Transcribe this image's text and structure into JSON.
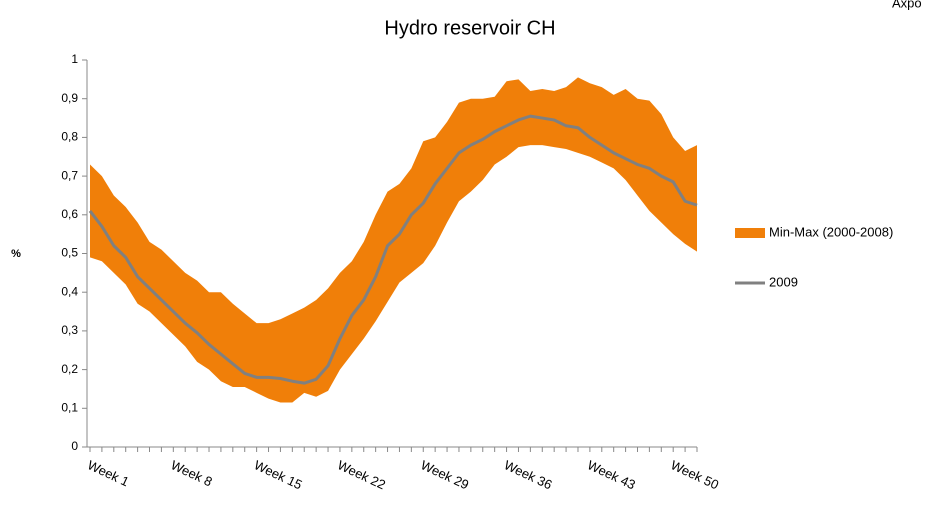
{
  "chart_data": {
    "type": "line",
    "title": "Hydro reservoir CH",
    "brand": "Axpo",
    "ylabel": "%",
    "categories": [
      "Week 1",
      null,
      null,
      null,
      null,
      null,
      null,
      "Week 8",
      null,
      null,
      null,
      null,
      null,
      null,
      "Week 15",
      null,
      null,
      null,
      null,
      null,
      null,
      "Week 22",
      null,
      null,
      null,
      null,
      null,
      null,
      "Week 29",
      null,
      null,
      null,
      null,
      null,
      null,
      "Week 36",
      null,
      null,
      null,
      null,
      null,
      null,
      "Week 43",
      null,
      null,
      null,
      null,
      null,
      null,
      "Week 50",
      null,
      null
    ],
    "ylim": [
      0,
      1
    ],
    "yticks": [
      0,
      {
        "value": 0.1,
        "label": "0,1"
      },
      {
        "value": 0.2,
        "label": "0,2"
      },
      {
        "value": 0.3,
        "label": "0,3"
      },
      {
        "value": 0.4,
        "label": "0,4"
      },
      {
        "value": 0.5,
        "label": "0,5"
      },
      {
        "value": 0.6,
        "label": "0,6"
      },
      {
        "value": 0.7,
        "label": "0,7"
      },
      {
        "value": 0.8,
        "label": "0,8"
      },
      {
        "value": 0.9,
        "label": "0,9"
      },
      1
    ],
    "grid": false,
    "legend": "right",
    "series": [
      {
        "name": "Min-Max (2000-2008)",
        "type": "area",
        "color": "#f07f09",
        "max": [
          0.73,
          0.7,
          0.65,
          0.62,
          0.58,
          0.53,
          0.51,
          0.48,
          0.45,
          0.43,
          0.4,
          0.4,
          0.37,
          0.345,
          0.32,
          0.32,
          0.33,
          0.345,
          0.36,
          0.38,
          0.41,
          0.45,
          0.48,
          0.53,
          0.6,
          0.66,
          0.68,
          0.72,
          0.79,
          0.8,
          0.84,
          0.89,
          0.9,
          0.9,
          0.905,
          0.945,
          0.95,
          0.92,
          0.925,
          0.92,
          0.93,
          0.955,
          0.94,
          0.93,
          0.91,
          0.925,
          0.9,
          0.895,
          0.86,
          0.8,
          0.765,
          0.78
        ],
        "min": [
          0.49,
          0.48,
          0.45,
          0.42,
          0.37,
          0.35,
          0.32,
          0.29,
          0.26,
          0.22,
          0.2,
          0.17,
          0.155,
          0.155,
          0.14,
          0.125,
          0.115,
          0.115,
          0.14,
          0.13,
          0.145,
          0.2,
          0.24,
          0.28,
          0.325,
          0.375,
          0.425,
          0.45,
          0.475,
          0.52,
          0.58,
          0.635,
          0.66,
          0.69,
          0.73,
          0.75,
          0.775,
          0.78,
          0.78,
          0.775,
          0.77,
          0.76,
          0.75,
          0.735,
          0.72,
          0.69,
          0.65,
          0.61,
          0.58,
          0.55,
          0.525,
          0.505
        ]
      },
      {
        "name": "2009",
        "type": "line",
        "color": "#808080",
        "values": [
          0.61,
          0.57,
          0.52,
          0.49,
          0.44,
          0.41,
          0.38,
          0.35,
          0.32,
          0.295,
          0.265,
          0.24,
          0.215,
          0.19,
          0.18,
          0.18,
          0.177,
          0.17,
          0.165,
          0.175,
          0.21,
          0.28,
          0.34,
          0.38,
          0.44,
          0.52,
          0.55,
          0.6,
          0.63,
          0.68,
          0.72,
          0.76,
          0.78,
          0.795,
          0.815,
          0.83,
          0.845,
          0.855,
          0.85,
          0.845,
          0.83,
          0.825,
          0.8,
          0.78,
          0.76,
          0.745,
          0.73,
          0.72,
          0.7,
          0.685,
          0.635,
          0.625
        ]
      }
    ]
  }
}
